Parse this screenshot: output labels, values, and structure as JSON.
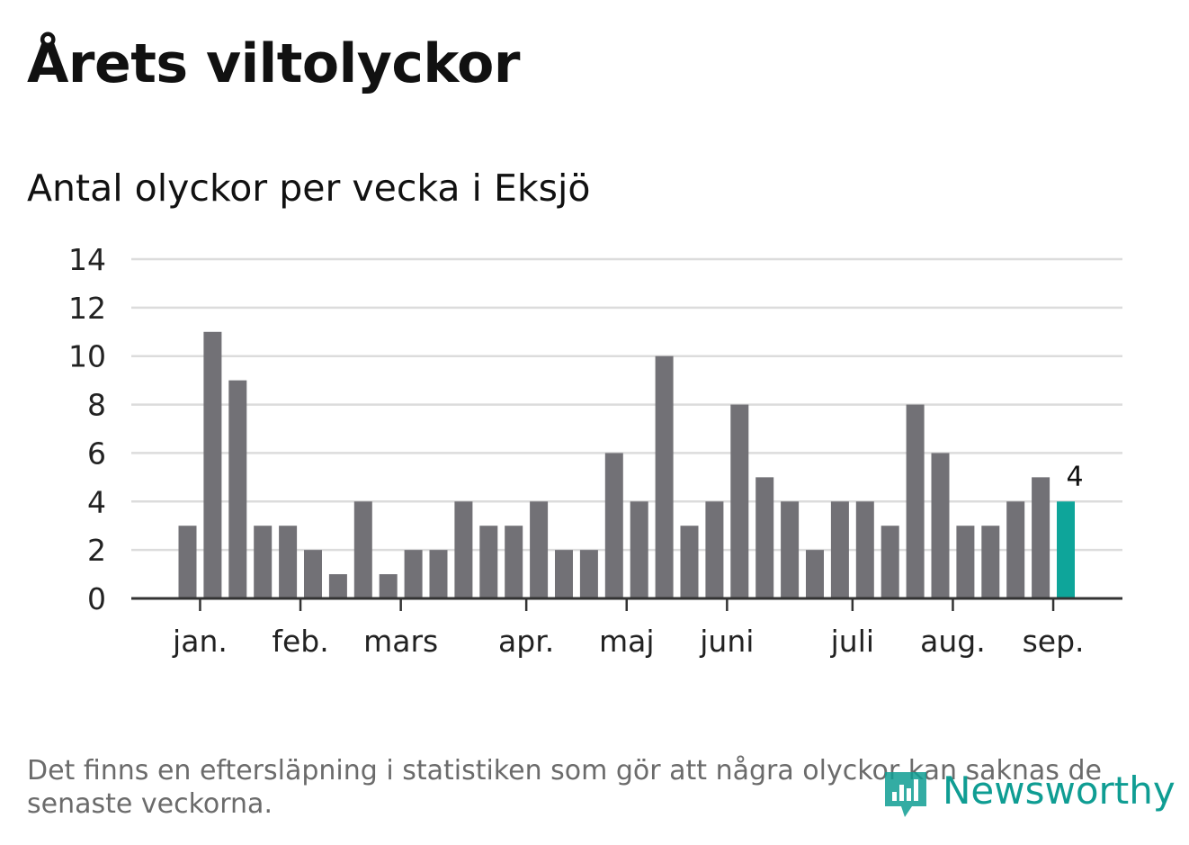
{
  "title": "Årets viltolyckor",
  "subtitle": "Antal olyckor per vecka i Eksjö",
  "footnote": "Det finns en eftersläpning i statistiken som gör att några olyckor kan saknas de senaste veckorna.",
  "logo": {
    "text": "Newsworthy",
    "icon": "newsworthy-logo-icon",
    "color": "#0f9d93"
  },
  "chart_data": {
    "type": "bar",
    "x": [
      1,
      2,
      3,
      4,
      5,
      6,
      7,
      8,
      9,
      10,
      11,
      12,
      13,
      14,
      15,
      16,
      17,
      18,
      19,
      20,
      21,
      22,
      23,
      24,
      25,
      26,
      27,
      28,
      29,
      30,
      31,
      32,
      33,
      34,
      35,
      36
    ],
    "values": [
      3,
      11,
      9,
      3,
      3,
      2,
      1,
      4,
      1,
      2,
      2,
      4,
      3,
      3,
      4,
      2,
      2,
      6,
      4,
      10,
      3,
      4,
      8,
      5,
      4,
      2,
      4,
      4,
      3,
      8,
      6,
      3,
      3,
      4,
      5,
      4
    ],
    "ylim": [
      0,
      14
    ],
    "yticks": [
      0,
      2,
      4,
      6,
      8,
      10,
      12,
      14
    ],
    "month_ticks": [
      {
        "label": "jan.",
        "week": 1.5
      },
      {
        "label": "feb.",
        "week": 5.5
      },
      {
        "label": "mars",
        "week": 9.5
      },
      {
        "label": "apr.",
        "week": 14.5
      },
      {
        "label": "maj",
        "week": 18.5
      },
      {
        "label": "juni",
        "week": 22.5
      },
      {
        "label": "juli",
        "week": 27.5
      },
      {
        "label": "aug.",
        "week": 31.5
      },
      {
        "label": "sep.",
        "week": 35.5
      }
    ],
    "highlight_last": true,
    "last_label": "4",
    "bar_color": "#727176",
    "highlight_color": "#0ea59a",
    "grid": true
  }
}
